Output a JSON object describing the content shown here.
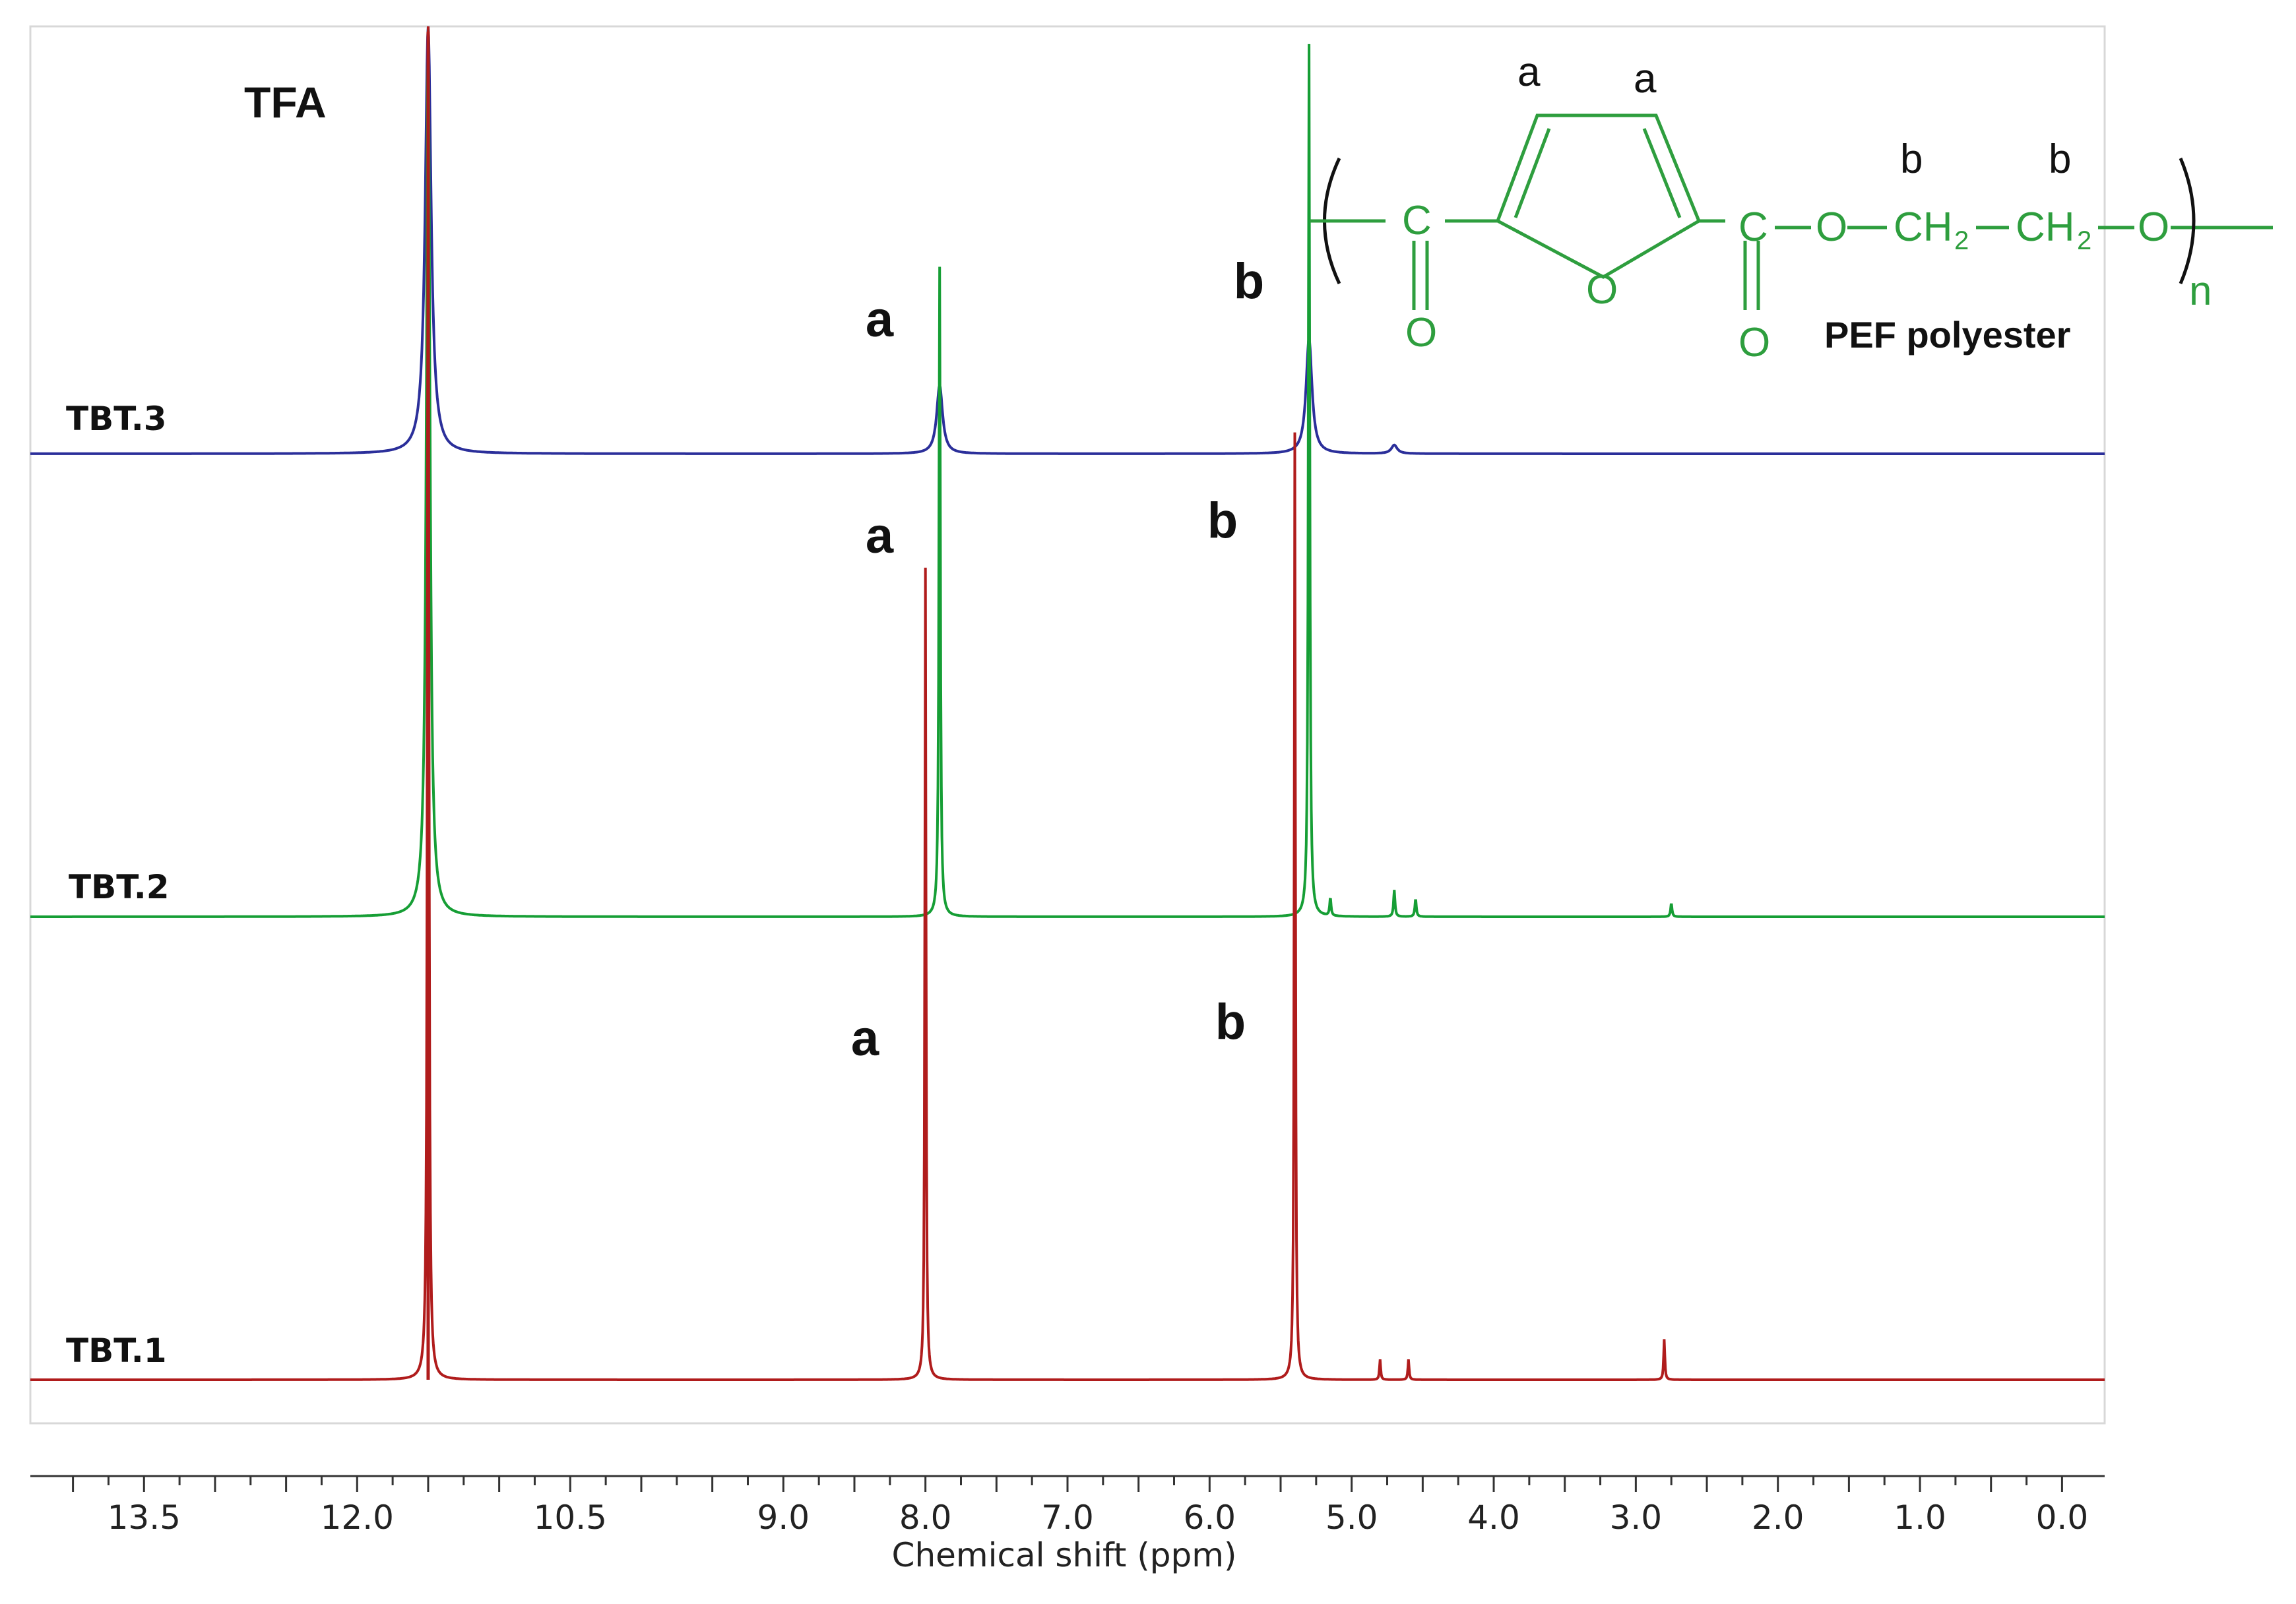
{
  "chart_data": {
    "type": "line",
    "xlabel": "Chemical shift (ppm)",
    "x_reversed": true,
    "xlim": [
      14.3,
      -0.3
    ],
    "tick_labels": [
      "13.5",
      "12.0",
      "10.5",
      "9.0",
      "8.0",
      "7.0",
      "6.0",
      "5.0",
      "4.0",
      "3.0",
      "2.0",
      "1.0",
      "0.0"
    ],
    "grid": false,
    "solvent_peak": {
      "label": "TFA",
      "x": 11.5,
      "color": "#b01c1c"
    },
    "series": [
      {
        "name": "TBT.3",
        "color": "#2b2f9a",
        "peaks": [
          {
            "x": 11.5,
            "height": 1.0,
            "width": 0.05,
            "label": ""
          },
          {
            "x": 7.9,
            "height": 0.16,
            "width": 0.05,
            "label": "a"
          },
          {
            "x": 5.3,
            "height": 0.27,
            "width": 0.05,
            "label": "b"
          },
          {
            "x": 4.7,
            "height": 0.02,
            "width": 0.05,
            "label": ""
          }
        ]
      },
      {
        "name": "TBT.2",
        "color": "#169e35",
        "peaks": [
          {
            "x": 11.5,
            "height": 1.0,
            "width": 0.03,
            "label": ""
          },
          {
            "x": 7.9,
            "height": 0.73,
            "width": 0.012,
            "label": "a"
          },
          {
            "x": 5.3,
            "height": 0.98,
            "width": 0.012,
            "label": "b"
          },
          {
            "x": 5.15,
            "height": 0.02,
            "width": 0.012,
            "label": ""
          },
          {
            "x": 4.7,
            "height": 0.03,
            "width": 0.012,
            "label": ""
          },
          {
            "x": 4.55,
            "height": 0.02,
            "width": 0.012,
            "label": ""
          },
          {
            "x": 2.75,
            "height": 0.015,
            "width": 0.012,
            "label": ""
          }
        ]
      },
      {
        "name": "TBT.1",
        "color": "#b01c1c",
        "peaks": [
          {
            "x": 11.5,
            "height": 1.0,
            "width": 0.012,
            "label": ""
          },
          {
            "x": 8.0,
            "height": 0.6,
            "width": 0.01,
            "label": "a"
          },
          {
            "x": 5.4,
            "height": 0.7,
            "width": 0.01,
            "label": "b"
          },
          {
            "x": 4.8,
            "height": 0.015,
            "width": 0.01,
            "label": ""
          },
          {
            "x": 4.6,
            "height": 0.015,
            "width": 0.01,
            "label": ""
          },
          {
            "x": 2.8,
            "height": 0.03,
            "width": 0.01,
            "label": ""
          }
        ]
      }
    ]
  },
  "structure": {
    "name": "PEF polyester",
    "atom_c": "C",
    "atom_o": "O",
    "ch2": "CH",
    "ch2_sub": "2",
    "repeat": "n",
    "label_a": "a",
    "label_b": "b"
  }
}
